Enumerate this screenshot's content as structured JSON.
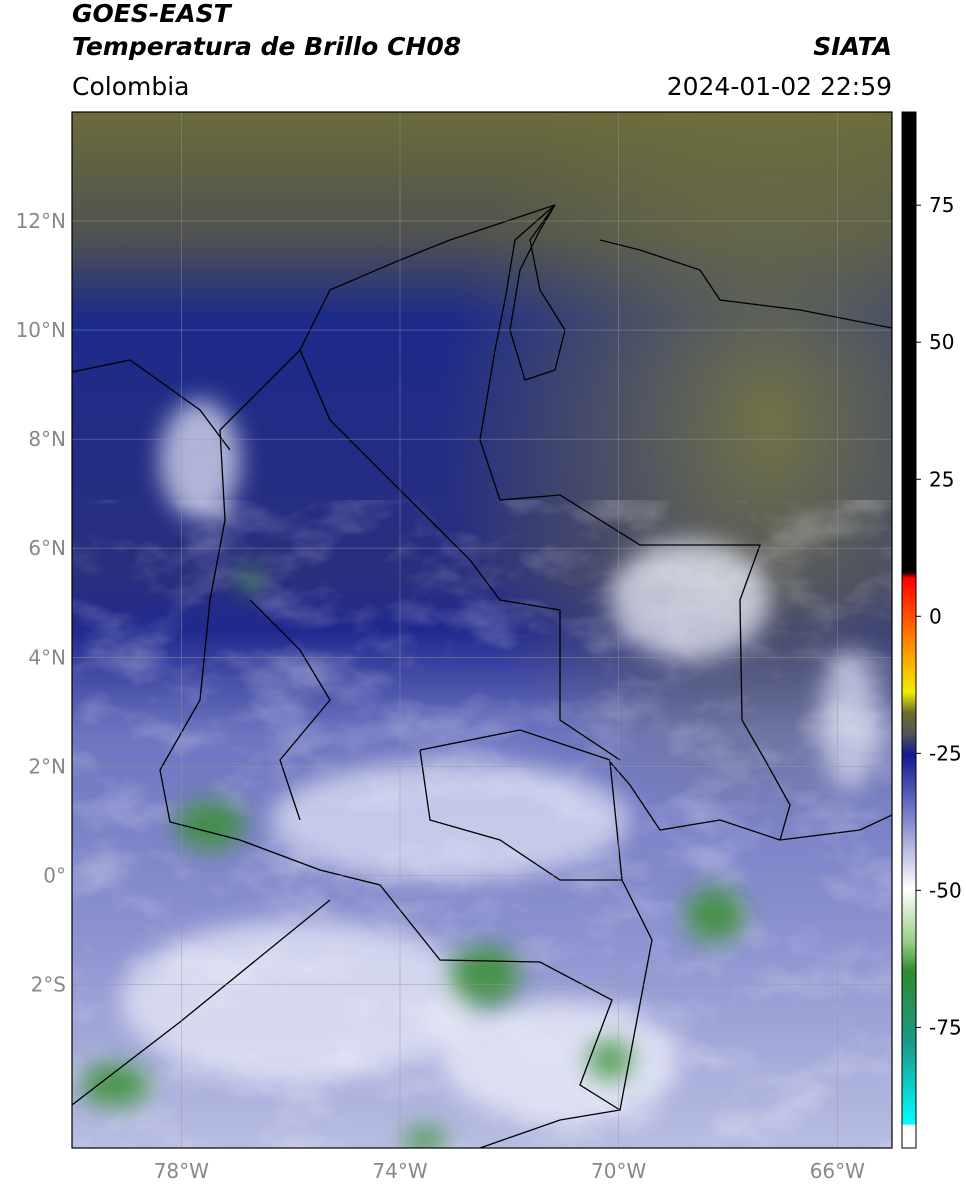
{
  "header": {
    "title": "GOES-EAST",
    "subtitle": "Temperatura de Brillo CH08",
    "source": "SIATA",
    "region": "Colombia",
    "datetime": "2024-01-02 22:59"
  },
  "map": {
    "lonlim": [
      -80,
      -65
    ],
    "latlim": [
      -5,
      14
    ],
    "grid": true,
    "lat_ticks": [
      {
        "value": 12,
        "label": "12°N"
      },
      {
        "value": 10,
        "label": "10°N"
      },
      {
        "value": 8,
        "label": "8°N"
      },
      {
        "value": 6,
        "label": "6°N"
      },
      {
        "value": 4,
        "label": "4°N"
      },
      {
        "value": 2,
        "label": "2°N"
      },
      {
        "value": 0,
        "label": "0°"
      },
      {
        "value": -2,
        "label": "2°S"
      }
    ],
    "lon_ticks": [
      {
        "value": -78,
        "label": "78°W"
      },
      {
        "value": -74,
        "label": "74°W"
      },
      {
        "value": -70,
        "label": "70°W"
      },
      {
        "value": -66,
        "label": "66°W"
      }
    ]
  },
  "colorbar": {
    "lim": [
      -97,
      92
    ],
    "ticks": [
      75,
      50,
      25,
      0,
      -25,
      -50,
      -75
    ]
  }
}
